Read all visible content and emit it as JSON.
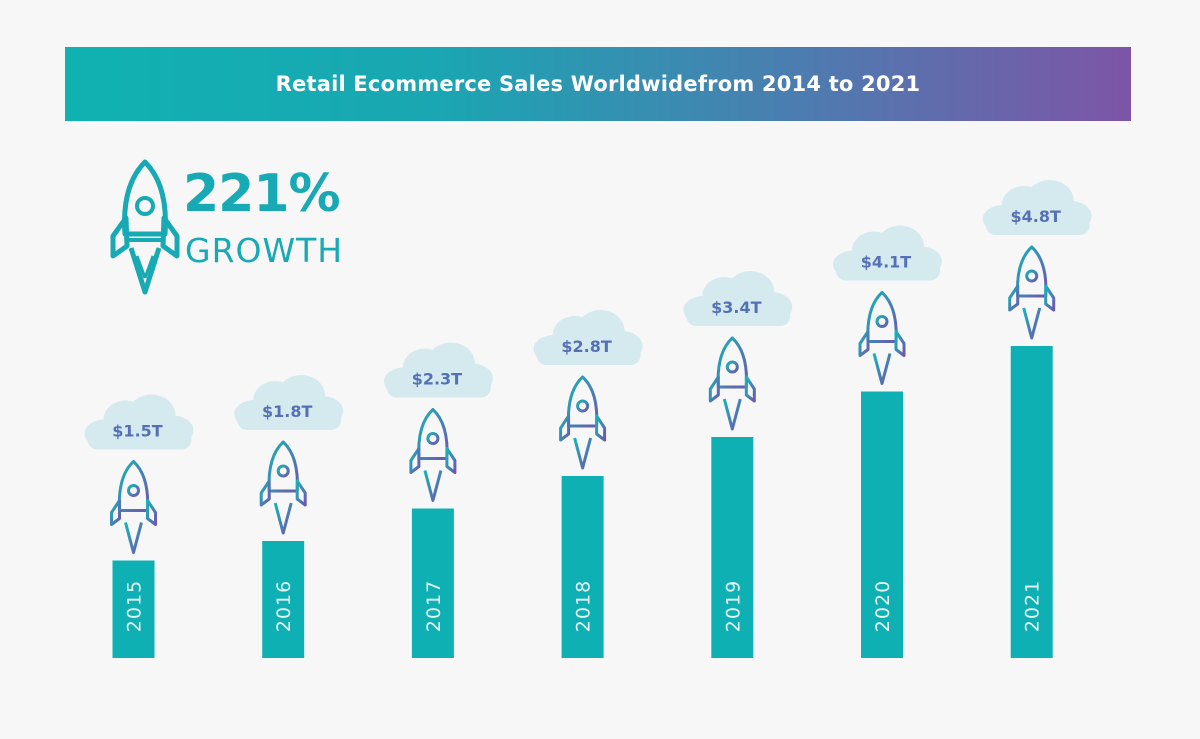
{
  "title": "Retail Ecommerce Sales Worldwidefrom 2014 to 2021",
  "badge": {
    "percent": "221%",
    "label": "GROWTH"
  },
  "colors": {
    "bar": "#0fb0b4",
    "cloud": "#d5eaee",
    "value_text": "#5570b6",
    "rocket_teal": "#17b3b7",
    "rocket_purple": "#6d57b0",
    "year_text": "#e5f6f7"
  },
  "icons": {
    "rocket": "rocket-icon",
    "cloud": "cloud-icon"
  },
  "chart_data": {
    "type": "bar",
    "categories": [
      "2015",
      "2016",
      "2017",
      "2018",
      "2019",
      "2020",
      "2021"
    ],
    "values": [
      1.5,
      1.8,
      2.3,
      2.8,
      3.4,
      4.1,
      4.8
    ],
    "labels": [
      "$1.5T",
      "$1.8T",
      "$2.3T",
      "$2.8T",
      "$3.4T",
      "$4.1T",
      "$4.8T"
    ],
    "title": "Retail Ecommerce Sales Worldwidefrom 2014 to 2021",
    "xlabel": "",
    "ylabel": "",
    "ylim": [
      0,
      4.8
    ],
    "grid": false,
    "legend": "none"
  }
}
